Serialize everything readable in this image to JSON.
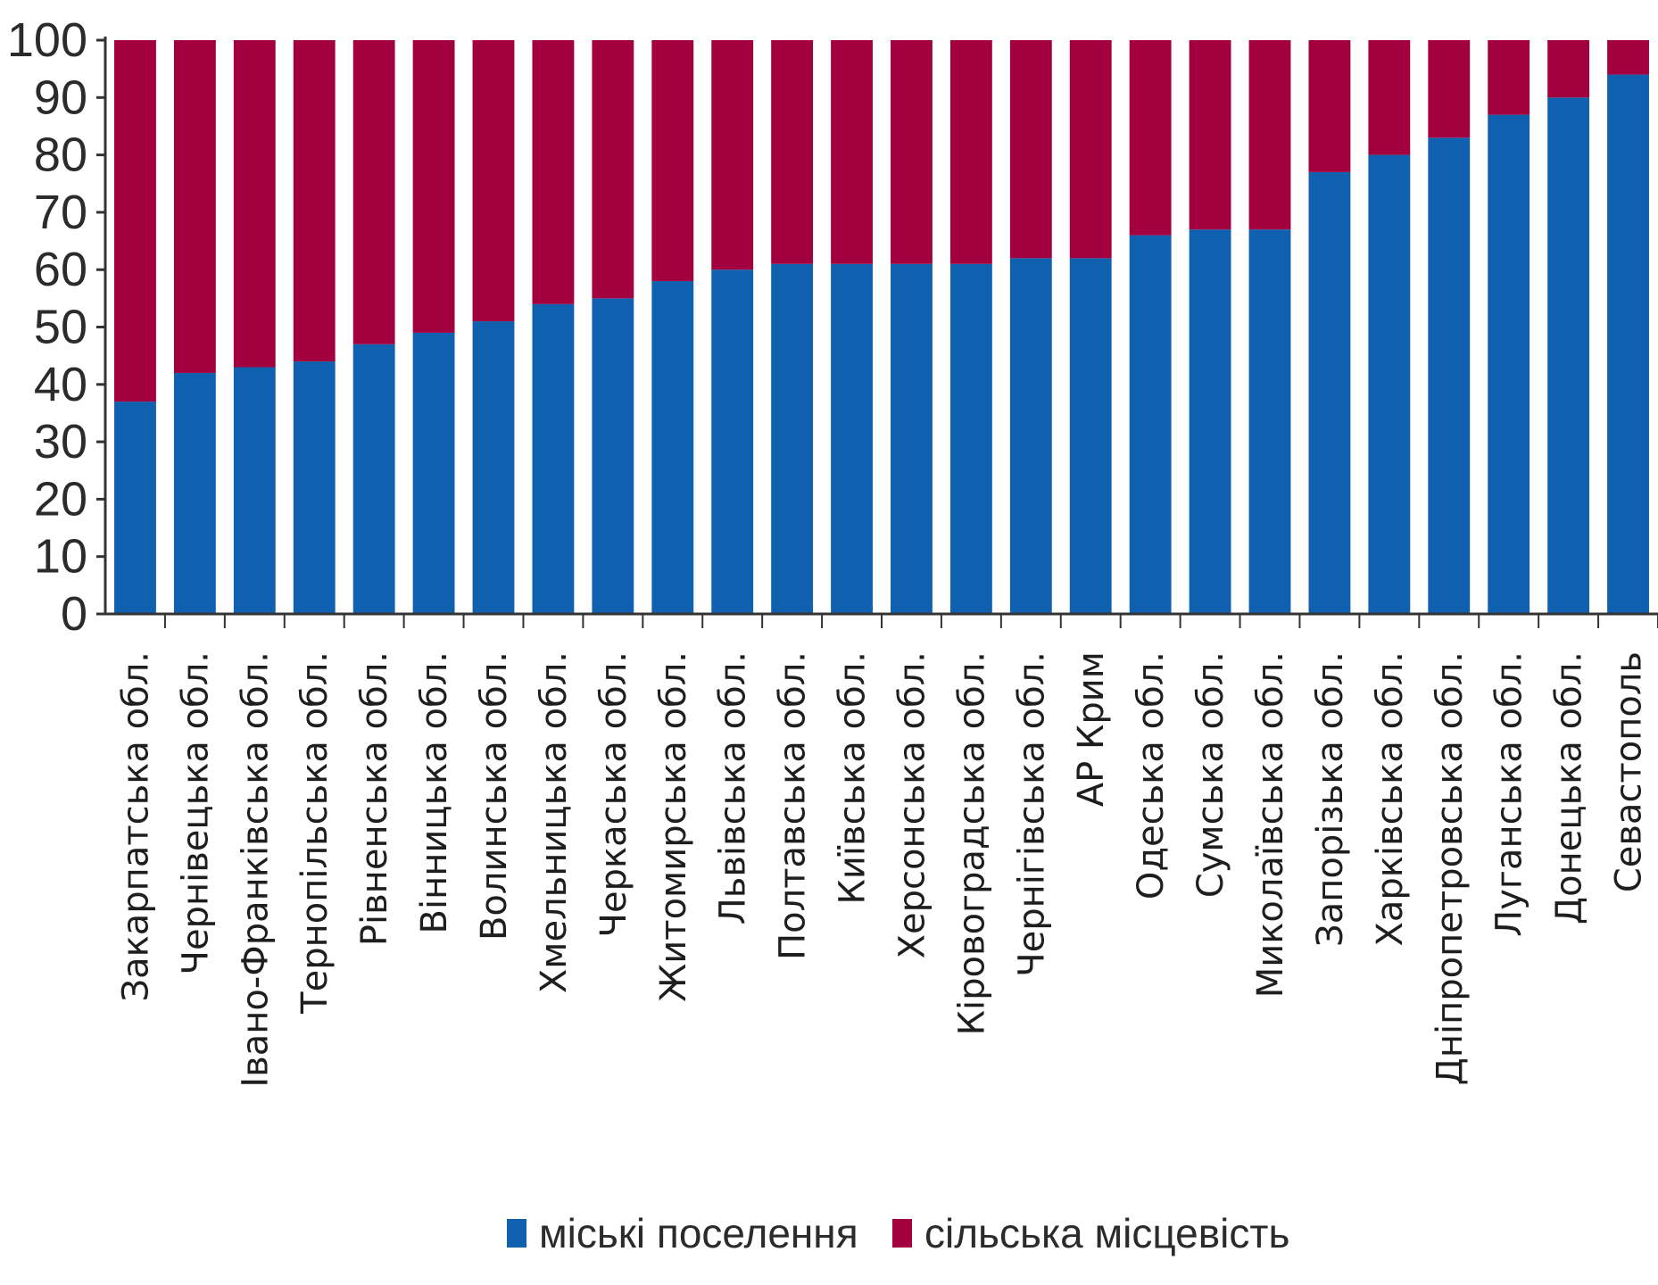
{
  "chart_data": {
    "type": "bar",
    "stacked": true,
    "horizontal": false,
    "categories": [
      "Закарпатська обл.",
      "Чернівецька обл.",
      "Івано-Франківська обл.",
      "Тернопільська обл.",
      "Рівненська обл.",
      "Вінницька обл.",
      "Волинська обл.",
      "Хмельницька обл.",
      "Черкаська обл.",
      "Житомирська обл.",
      "Львівська обл.",
      "Полтавська обл.",
      "Київська обл.",
      "Херсонська обл.",
      "Кіровоградська обл.",
      "Чернігівська обл.",
      "АР Крим",
      "Одеська обл.",
      "Сумська обл.",
      "Миколаївська обл.",
      "Запорізька обл.",
      "Харківська обл.",
      "Дніпропетровська обл.",
      "Луганська обл.",
      "Донецька обл.",
      "Севастополь"
    ],
    "series": [
      {
        "name": "міські поселення",
        "color": "#1060b0",
        "values": [
          37,
          42,
          43,
          44,
          47,
          49,
          51,
          54,
          55,
          58,
          60,
          61,
          61,
          61,
          61,
          62,
          62,
          66,
          67,
          67,
          77,
          80,
          83,
          87,
          90,
          94
        ]
      },
      {
        "name": "сільська місцевість",
        "color": "#a3003f",
        "values": [
          63,
          58,
          57,
          56,
          53,
          51,
          49,
          46,
          45,
          42,
          40,
          39,
          39,
          39,
          39,
          38,
          38,
          34,
          33,
          33,
          23,
          20,
          17,
          13,
          10,
          6
        ]
      }
    ],
    "y_ticks": [
      "0",
      "10",
      "20",
      "30",
      "40",
      "50",
      "60",
      "70",
      "80",
      "90",
      "100"
    ],
    "ylim": [
      0,
      100
    ],
    "grid": false,
    "legend_position": "bottom"
  }
}
